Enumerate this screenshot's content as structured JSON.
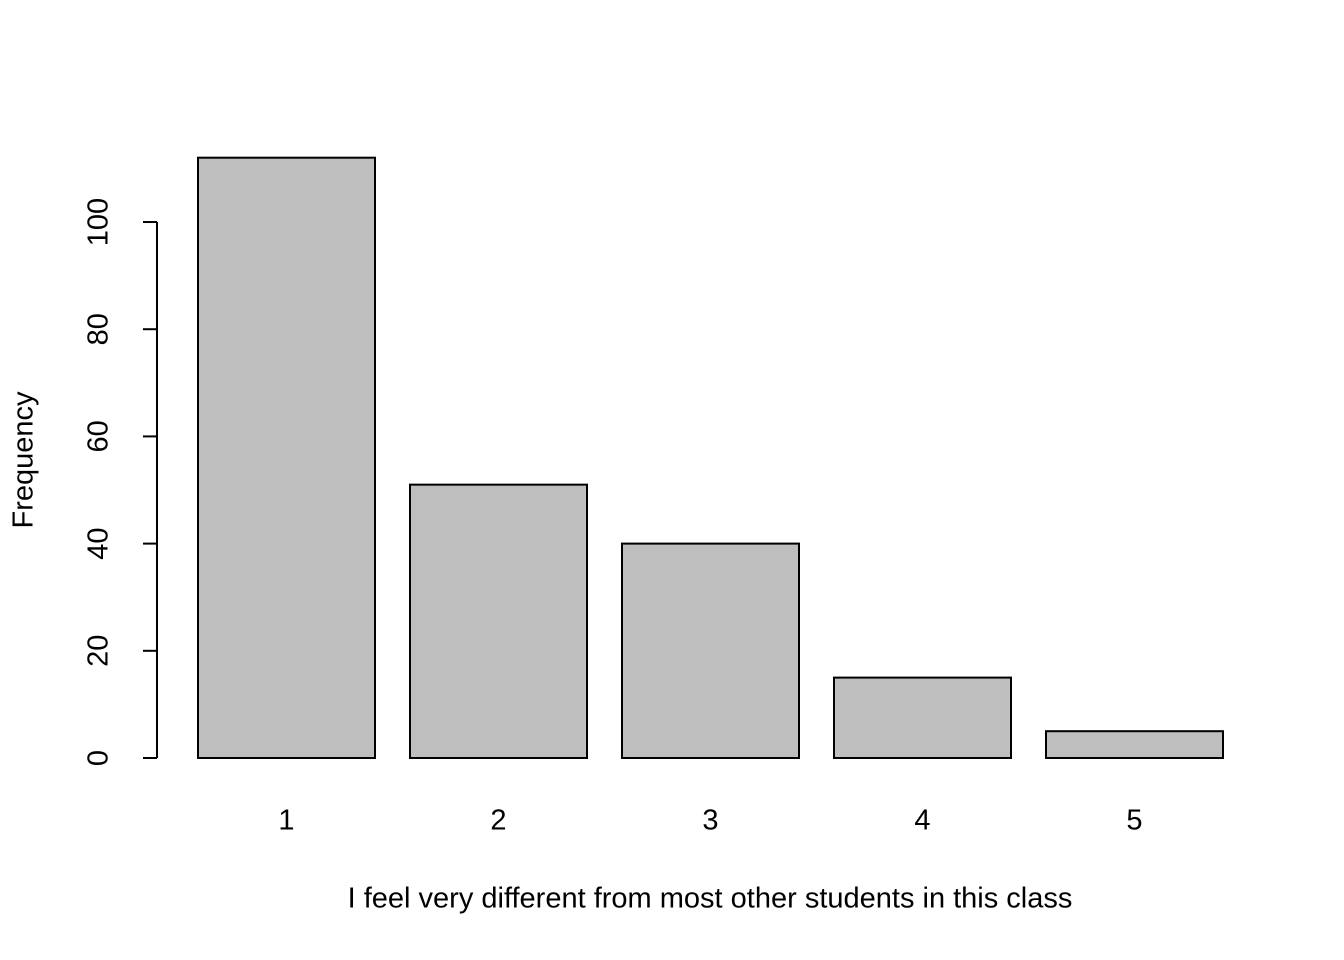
{
  "chart_data": {
    "type": "bar",
    "x_label": "I feel very different from most other students in this class",
    "y_label": "Frequency",
    "categories": [
      "1",
      "2",
      "3",
      "4",
      "5"
    ],
    "values": [
      112,
      51,
      40,
      15,
      5
    ],
    "color": "#bebebe",
    "ylim": [
      0,
      112
    ],
    "yticks": [
      0,
      20,
      40,
      60,
      80,
      100
    ],
    "grid": false
  }
}
